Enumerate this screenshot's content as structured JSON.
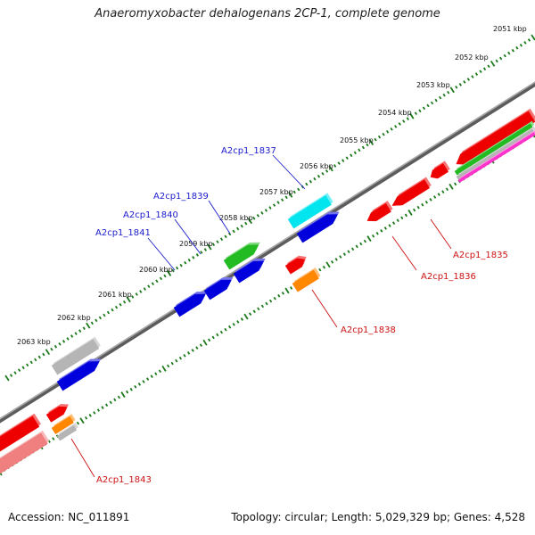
{
  "title": "Anaeromyxobacter dehalogenans 2CP-1, complete genome",
  "footer": {
    "accession": "Accession: NC_011891",
    "summary": "Topology: circular; Length: 5,029,329 bp; Genes: 4,528"
  },
  "colors": {
    "backbone": "#7f7f7f",
    "tick": "#1a7a1a",
    "forward_label": "#1a1acc",
    "reverse_label": "#cc1111"
  },
  "kbp_labels": [
    "2051 kbp",
    "2052 kbp",
    "2053 kbp",
    "2054 kbp",
    "2055 kbp",
    "2056 kbp",
    "2057 kbp",
    "2058 kbp",
    "2059 kbp",
    "2060 kbp",
    "2061 kbp",
    "2062 kbp",
    "2063 kbp"
  ],
  "gene_labels": [
    {
      "id": "A2cp1_1837",
      "color": "#1a1acc"
    },
    {
      "id": "A2cp1_1839",
      "color": "#1a1acc"
    },
    {
      "id": "A2cp1_1840",
      "color": "#1a1acc"
    },
    {
      "id": "A2cp1_1841",
      "color": "#1a1acc"
    },
    {
      "id": "A2cp1_1835",
      "color": "#cc1111"
    },
    {
      "id": "A2cp1_1836",
      "color": "#cc1111"
    },
    {
      "id": "A2cp1_1838",
      "color": "#cc1111"
    },
    {
      "id": "A2cp1_1843",
      "color": "#cc1111"
    }
  ],
  "gene_colors": {
    "red": "#ee0000",
    "blue": "#0000dd",
    "cyan": "#00e5ee",
    "green": "#22bb22",
    "orange": "#ff8800",
    "gray": "#b5b5b5",
    "pink": "#f08080",
    "magenta": "#ff33cc"
  }
}
